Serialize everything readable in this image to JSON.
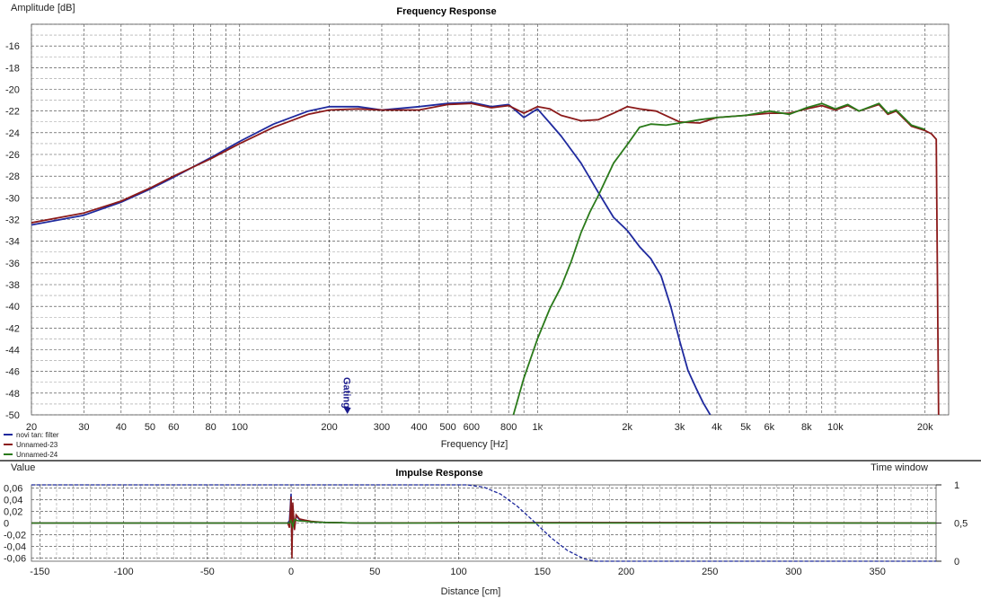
{
  "chart_data": [
    {
      "type": "line",
      "title": "Frequency Response",
      "xlabel": "Frequency [Hz]",
      "ylabel": "Amplitude [dB]",
      "xscale": "log",
      "xlim": [
        20,
        24000
      ],
      "ylim": [
        -50,
        -14
      ],
      "grid": true,
      "legend_position": "bottom-left",
      "x_ticks": [
        20,
        30,
        40,
        50,
        60,
        80,
        100,
        200,
        300,
        400,
        500,
        600,
        800,
        1000,
        2000,
        3000,
        4000,
        5000,
        6000,
        8000,
        10000,
        20000
      ],
      "x_tick_labels": [
        "20",
        "30",
        "40",
        "50",
        "60",
        "80",
        "100",
        "200",
        "300",
        "400",
        "500",
        "600",
        "800",
        "1k",
        "2k",
        "3k",
        "4k",
        "5k",
        "6k",
        "8k",
        "10k",
        "20k"
      ],
      "y_ticks": [
        -16,
        -18,
        -20,
        -22,
        -24,
        -26,
        -28,
        -30,
        -32,
        -34,
        -36,
        -38,
        -40,
        -42,
        -44,
        -46,
        -48,
        -50
      ],
      "y_tick_labels": [
        "-16",
        "-18",
        "-20",
        "-22",
        "-24",
        "-26",
        "-28",
        "-30",
        "-32",
        "-34",
        "-36",
        "-38",
        "-40",
        "-42",
        "-44",
        "-46",
        "-48",
        "-50"
      ],
      "marker": {
        "label": "Gating",
        "x": 230,
        "color": "#1a1a8c"
      },
      "series": [
        {
          "name": "novi tan: filter",
          "color": "#1f2a9e",
          "x": [
            20,
            30,
            40,
            50,
            60,
            80,
            100,
            130,
            170,
            200,
            250,
            300,
            400,
            500,
            600,
            700,
            800,
            900,
            1000,
            1100,
            1200,
            1400,
            1600,
            1800,
            2000,
            2200,
            2400,
            2600,
            2800,
            3000,
            3200,
            3400,
            3600,
            3800
          ],
          "y": [
            -32.5,
            -31.6,
            -30.4,
            -29.2,
            -28.1,
            -26.3,
            -24.8,
            -23.2,
            -22.0,
            -21.6,
            -21.6,
            -21.9,
            -21.6,
            -21.3,
            -21.2,
            -21.6,
            -21.4,
            -22.6,
            -21.8,
            -23.1,
            -24.3,
            -26.8,
            -29.5,
            -31.8,
            -33.0,
            -34.5,
            -35.6,
            -37.2,
            -40.0,
            -43.2,
            -45.9,
            -47.5,
            -48.9,
            -50.0
          ]
        },
        {
          "name": "Unnamed-23",
          "color": "#8b1a1a",
          "x": [
            20,
            30,
            40,
            50,
            60,
            80,
            100,
            130,
            170,
            200,
            250,
            300,
            400,
            500,
            600,
            700,
            800,
            900,
            1000,
            1100,
            1200,
            1400,
            1600,
            1800,
            2000,
            2200,
            2500,
            3000,
            3500,
            4000,
            5000,
            6000,
            7000,
            8000,
            9000,
            10000,
            11000,
            12000,
            14000,
            15000,
            16000,
            18000,
            20000,
            21000,
            21800,
            22200
          ],
          "y": [
            -32.3,
            -31.4,
            -30.3,
            -29.1,
            -28.0,
            -26.4,
            -25.0,
            -23.5,
            -22.3,
            -21.9,
            -21.8,
            -21.9,
            -21.9,
            -21.4,
            -21.3,
            -21.7,
            -21.5,
            -22.2,
            -21.6,
            -21.8,
            -22.4,
            -22.9,
            -22.8,
            -22.2,
            -21.6,
            -21.8,
            -22.0,
            -23.0,
            -23.1,
            -22.6,
            -22.4,
            -22.2,
            -22.2,
            -21.8,
            -21.5,
            -21.9,
            -21.5,
            -22.0,
            -21.4,
            -22.3,
            -22.0,
            -23.4,
            -23.8,
            -24.1,
            -24.6,
            -50.0
          ]
        },
        {
          "name": "Unnamed-24",
          "color": "#2a7a1a",
          "x": [
            830,
            900,
            1000,
            1100,
            1200,
            1300,
            1400,
            1500,
            1600,
            1800,
            2000,
            2200,
            2400,
            2700,
            3000,
            3500,
            4000,
            5000,
            6000,
            7000,
            8000,
            9000,
            10000,
            11000,
            12000,
            14000,
            15000,
            16000,
            18000,
            20000
          ],
          "y": [
            -50.0,
            -46.6,
            -43.0,
            -40.2,
            -38.2,
            -35.8,
            -33.2,
            -31.3,
            -29.8,
            -26.8,
            -25.1,
            -23.5,
            -23.2,
            -23.3,
            -23.1,
            -22.8,
            -22.6,
            -22.4,
            -22.0,
            -22.3,
            -21.7,
            -21.3,
            -21.8,
            -21.4,
            -22.0,
            -21.3,
            -22.2,
            -21.9,
            -23.3,
            -23.7
          ]
        }
      ]
    },
    {
      "type": "line",
      "title": "Impulse Response",
      "xlabel": "Distance [cm]",
      "ylabel": "Value",
      "y2label": "Time window",
      "xlim": [
        -155,
        385
      ],
      "ylim": [
        -0.065,
        0.065
      ],
      "y2lim": [
        0,
        1
      ],
      "grid": true,
      "x_ticks": [
        -150,
        -100,
        -50,
        0,
        50,
        100,
        150,
        200,
        250,
        300,
        350
      ],
      "x_tick_labels": [
        "-150",
        "-100",
        "-50",
        "0",
        "50",
        "100",
        "150",
        "200",
        "250",
        "300",
        "350"
      ],
      "y_ticks": [
        0.06,
        0.04,
        0.02,
        0,
        -0.02,
        -0.04,
        -0.06
      ],
      "y_tick_labels": [
        "0,06",
        "0,04",
        "0,02",
        "0",
        "-0,02",
        "-0,04",
        "-0,06"
      ],
      "y2_ticks": [
        1,
        0.5,
        0
      ],
      "y2_tick_labels": [
        "1",
        "0,5",
        "0"
      ],
      "series": [
        {
          "name": "novi tan: filter",
          "color": "#1f2a9e",
          "x": [
            -155,
            -2,
            -1,
            0,
            0.5,
            1,
            2,
            3,
            5,
            8,
            12,
            20,
            40,
            100,
            200,
            385
          ],
          "y": [
            0,
            0,
            0.004,
            0.05,
            -0.045,
            0.03,
            -0.01,
            0.012,
            0.006,
            0.004,
            0.002,
            0.001,
            0,
            0.0005,
            0.0008,
            0
          ]
        },
        {
          "name": "Unnamed-23",
          "color": "#8b1a1a",
          "x": [
            -155,
            -2,
            -1,
            0,
            0.5,
            1,
            2,
            3,
            5,
            8,
            12,
            20,
            40,
            100,
            200,
            385
          ],
          "y": [
            0,
            0,
            -0.008,
            0.045,
            -0.06,
            0.035,
            -0.012,
            0.014,
            0.007,
            0.005,
            0.003,
            0.001,
            0,
            0.0005,
            0.0008,
            0
          ]
        },
        {
          "name": "Unnamed-24",
          "color": "#2a7a1a",
          "x": [
            -155,
            -1,
            0,
            1,
            2,
            4,
            8,
            12,
            20,
            40,
            385
          ],
          "y": [
            0,
            0,
            0.004,
            -0.006,
            0.006,
            0.004,
            0.003,
            0.002,
            0.001,
            0,
            0
          ]
        },
        {
          "name": "Time window",
          "color": "#1f2a9e",
          "dashed": true,
          "axis": "y2",
          "x": [
            -155,
            105,
            115,
            125,
            135,
            145,
            155,
            165,
            175,
            182,
            385
          ],
          "y": [
            1,
            1,
            0.97,
            0.88,
            0.72,
            0.52,
            0.31,
            0.14,
            0.03,
            0,
            0
          ]
        }
      ]
    }
  ]
}
